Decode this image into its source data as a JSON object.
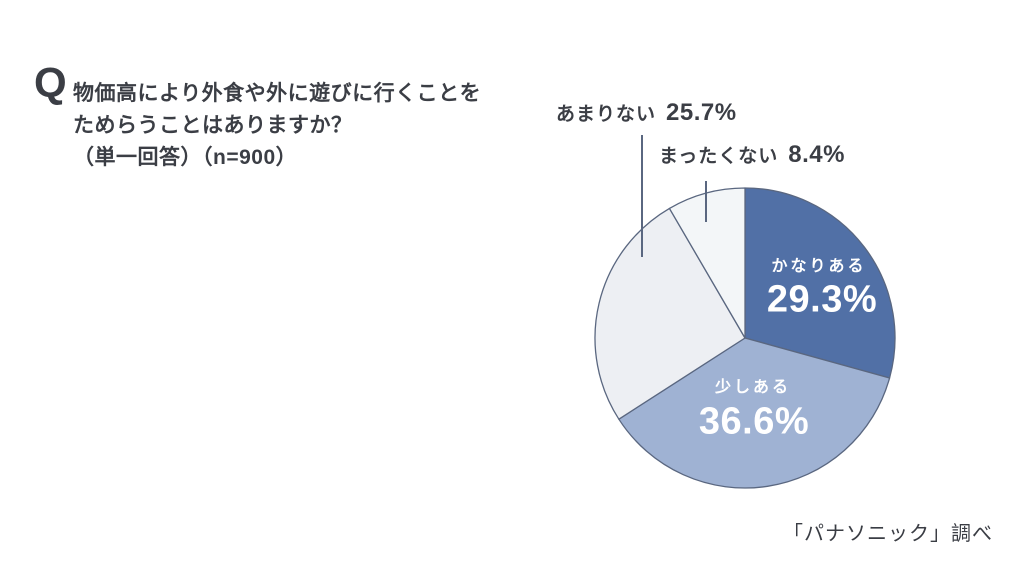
{
  "question": {
    "mark": "Q",
    "lines": [
      "物価高により外食や外に遊びに行くことを",
      "ためらうことはありますか？",
      "（単一回答）（n=900）"
    ]
  },
  "source": {
    "text": "「パナソニック」調べ"
  },
  "chart_data": {
    "type": "pie",
    "title": "物価高により外食や外に遊びに行くことをためらうことはありますか？（単一回答）（n=900）",
    "n_label": "n=900",
    "unit": "%",
    "start_angle": "12-oclock",
    "direction": "clockwise",
    "stroke_color": "#5a6780",
    "inside_text_color": "#ffffff",
    "outside_text_color": "#3b3e45",
    "slices": [
      {
        "label": "かなりある",
        "value": 29.3,
        "pct_text": "29.3%",
        "color": "#5170a6",
        "label_placement": "inside"
      },
      {
        "label": "少しある",
        "value": 36.6,
        "pct_text": "36.6%",
        "color": "#9fb2d3",
        "label_placement": "inside"
      },
      {
        "label": "あまりない",
        "value": 25.7,
        "pct_text": "25.7%",
        "color": "#edeff3",
        "label_placement": "outside"
      },
      {
        "label": "まったくない",
        "value": 8.4,
        "pct_text": "8.4%",
        "color": "#f3f6f8",
        "label_placement": "outside"
      }
    ]
  }
}
